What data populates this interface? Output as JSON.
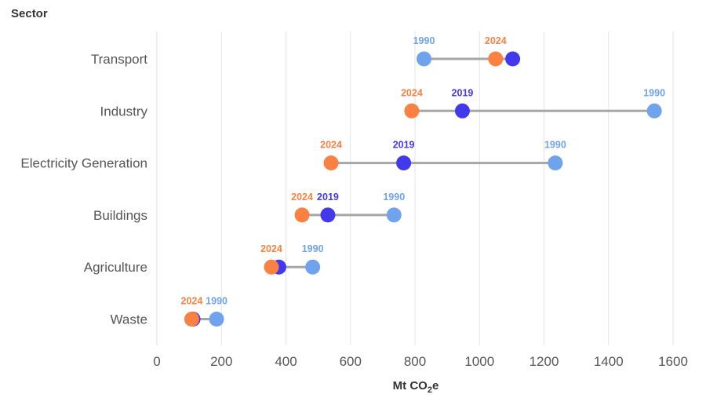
{
  "chart_data": {
    "type": "dumbbell",
    "title": "",
    "ylabel": "Sector",
    "xlabel": "Mt CO",
    "xlabel_sub": "2",
    "xlabel_suffix": "e",
    "xlim": [
      0,
      1600
    ],
    "xticks": [
      0,
      200,
      400,
      600,
      800,
      1000,
      1200,
      1400,
      1600
    ],
    "grid": true,
    "categories": [
      "Transport",
      "Industry",
      "Electricity Generation",
      "Buildings",
      "Agriculture",
      "Waste"
    ],
    "series": [
      {
        "name": "1990",
        "color": "#6fa3ee",
        "values": [
          828,
          1542,
          1235,
          735,
          483,
          185
        ]
      },
      {
        "name": "2019",
        "color": "#4339ec",
        "values": [
          1103,
          947,
          765,
          530,
          378,
          112
        ]
      },
      {
        "name": "2024",
        "color": "#fb8143",
        "values": [
          1050,
          790,
          540,
          450,
          355,
          108
        ]
      }
    ],
    "value_labels": [
      [
        "1990",
        "",
        "2024"
      ],
      [
        "1990",
        "2019",
        "2024"
      ],
      [
        "1990",
        "2019",
        "2024"
      ],
      [
        "1990",
        "2019",
        "2024"
      ],
      [
        "1990",
        "",
        "2024"
      ],
      [
        "1990",
        "",
        "2024"
      ]
    ],
    "connector_color": "#a6a6a6"
  }
}
